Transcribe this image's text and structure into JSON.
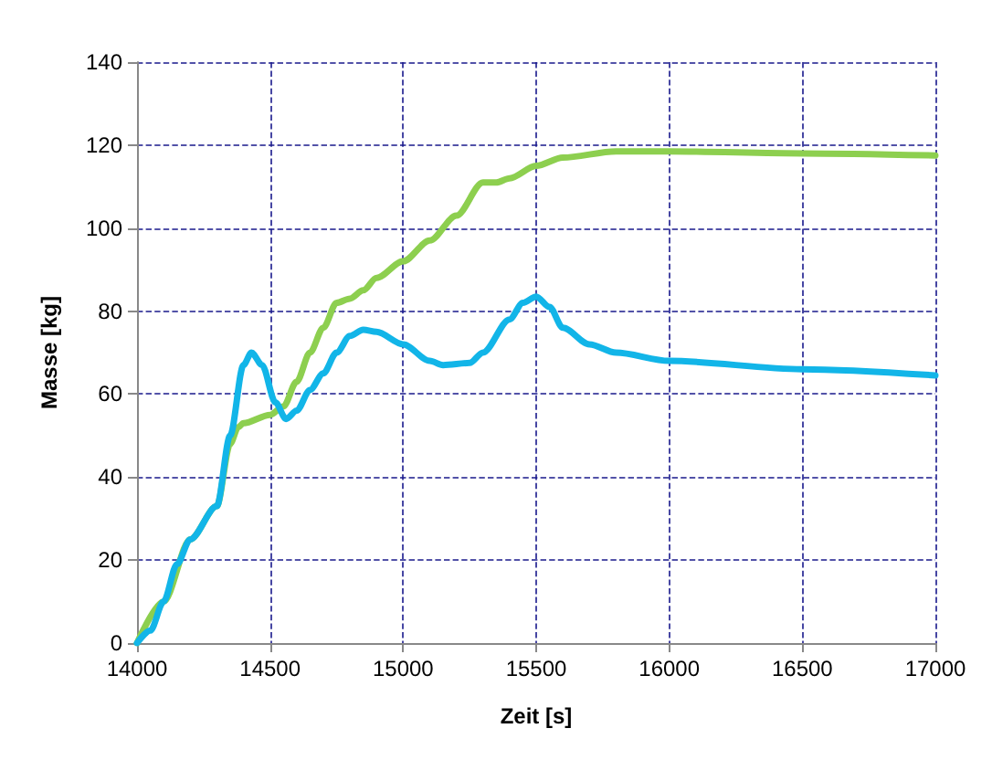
{
  "chart_data": {
    "type": "line",
    "xlabel": "Zeit [s]",
    "ylabel": "Masse [kg]",
    "xlim": [
      14000,
      17000
    ],
    "xticks": [
      14000,
      14500,
      15000,
      15500,
      16000,
      16500,
      17000
    ],
    "ylim": [
      0,
      140
    ],
    "yticks": [
      0,
      20,
      40,
      60,
      80,
      100,
      120,
      140
    ],
    "grid": true,
    "marker": "none",
    "line_style": "solid",
    "series": [
      {
        "color": "#8dcf4f",
        "x": [
          14000,
          14100,
          14200,
          14300,
          14350,
          14380,
          14400,
          14500,
          14550,
          14600,
          14650,
          14700,
          14750,
          14800,
          14850,
          14900,
          15000,
          15100,
          15200,
          15300,
          15350,
          15400,
          15500,
          15600,
          15800,
          16000,
          16500,
          17000
        ],
        "values": [
          0,
          10,
          25,
          33,
          48,
          52,
          53,
          55,
          57,
          63,
          70,
          76,
          82,
          83,
          85,
          88,
          92,
          97,
          103,
          111,
          111,
          112,
          115,
          117,
          118.5,
          118.5,
          118,
          117.5
        ]
      },
      {
        "color": "#12b5e8",
        "x": [
          14000,
          14050,
          14100,
          14150,
          14200,
          14300,
          14350,
          14400,
          14430,
          14470,
          14520,
          14560,
          14600,
          14650,
          14700,
          14750,
          14800,
          14850,
          14900,
          15000,
          15100,
          15150,
          15250,
          15300,
          15400,
          15450,
          15500,
          15550,
          15600,
          15700,
          15800,
          16000,
          16500,
          17000
        ],
        "values": [
          0,
          3,
          10,
          19,
          25,
          33,
          50,
          67,
          70,
          67,
          58,
          54,
          56,
          61,
          65,
          70,
          74,
          75.5,
          75,
          72,
          68,
          67,
          67.5,
          70,
          78,
          82,
          83.5,
          81,
          76,
          72,
          70,
          68,
          66,
          64.5
        ]
      }
    ]
  }
}
